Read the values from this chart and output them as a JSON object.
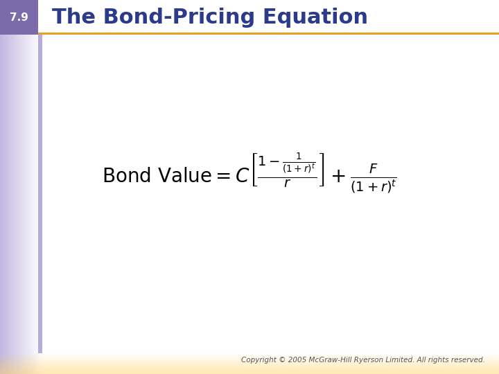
{
  "title": "The Bond-Pricing Equation",
  "slide_number": "7.9",
  "formula_latex": "\\text{Bond Value} = C\\left[\\frac{1 - \\frac{1}{(1+r)^t}}{r}\\right] + \\frac{F}{(1+r)^t}",
  "copyright": "Copyright © 2005 McGraw-Hill Ryerson Limited. All rights reserved.",
  "bg_color": "#ffffff",
  "left_bar_color": "#8B7BB5",
  "header_bar_color": "#DAA520",
  "slide_num_bg": "#8B7BB5",
  "title_color": "#2B3A8B",
  "formula_color": "#000000",
  "copyright_color": "#555555",
  "gradient_left_color": "#B8A0D8",
  "gradient_bottom_color": "#FFD580"
}
